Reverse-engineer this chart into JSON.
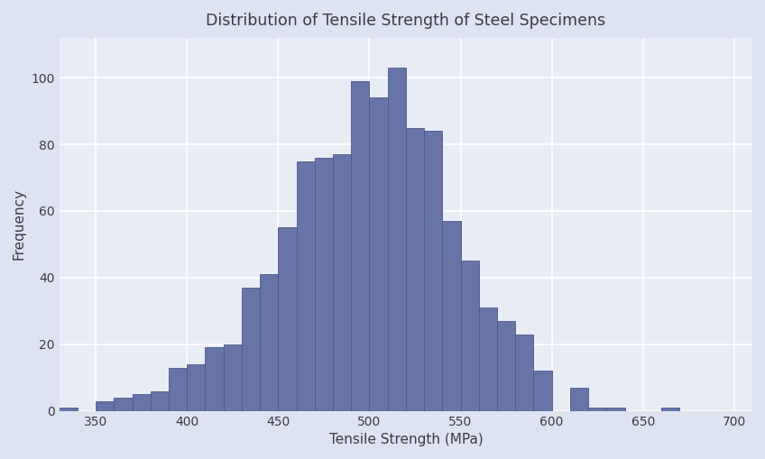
{
  "title": "Distribution of Tensile Strength of Steel Specimens",
  "xlabel": "Tensile Strength (MPa)",
  "ylabel": "Frequency",
  "bar_color": "#6674a8",
  "bar_edge_color": "#4a5a8a",
  "background_color": "#e8ecf5",
  "fig_background_color": "#dde3ef",
  "xlim": [
    330,
    710
  ],
  "ylim": [
    0,
    112
  ],
  "xticks": [
    350,
    400,
    450,
    500,
    550,
    600,
    650,
    700
  ],
  "yticks": [
    0,
    20,
    40,
    60,
    80,
    100
  ],
  "bin_start": 330,
  "bin_width": 10,
  "frequencies": [
    1,
    0,
    3,
    4,
    5,
    6,
    13,
    14,
    19,
    20,
    37,
    41,
    55,
    75,
    76,
    77,
    99,
    94,
    103,
    85,
    84,
    57,
    45,
    31,
    27,
    23,
    12,
    0,
    7,
    1,
    1,
    0,
    0,
    1
  ]
}
